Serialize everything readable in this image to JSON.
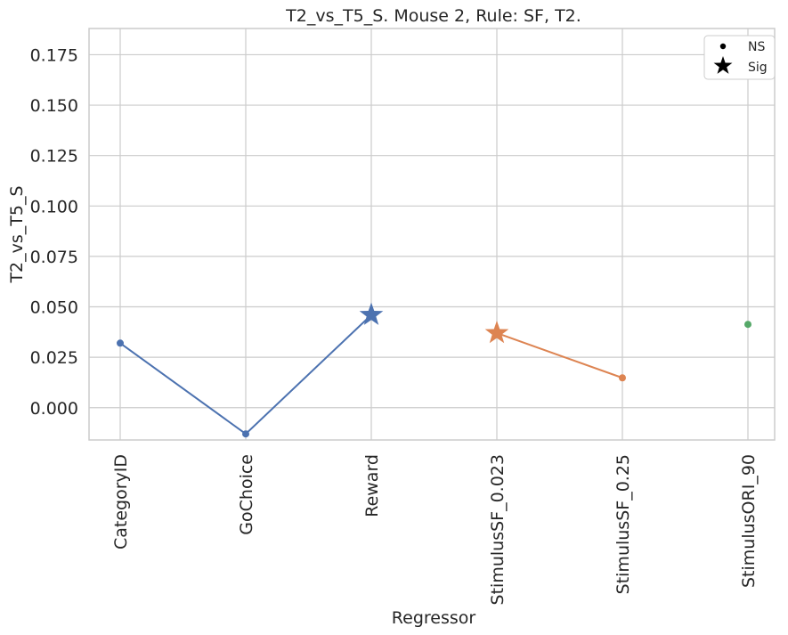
{
  "chart_data": {
    "type": "line",
    "title": "T2_vs_T5_S. Mouse 2, Rule: SF, T2.",
    "xlabel": "Regressor",
    "ylabel": "T2_vs_T5_S",
    "categories": [
      "CategoryID",
      "GoChoice",
      "Reward",
      "StimulusSF_0.023",
      "StimulusSF_0.25",
      "StimulusORI_90"
    ],
    "ylim": [
      -0.016,
      0.188
    ],
    "yticks": [
      0.0,
      0.025,
      0.05,
      0.075,
      0.1,
      0.125,
      0.15,
      0.175
    ],
    "ytick_labels": [
      "0.000",
      "0.025",
      "0.050",
      "0.075",
      "0.100",
      "0.125",
      "0.150",
      "0.175"
    ],
    "grid": true,
    "legend_position": "top-right",
    "legend": [
      {
        "label": "NS",
        "marker": "dot"
      },
      {
        "label": "Sig",
        "marker": "star"
      }
    ],
    "series": [
      {
        "color": "#4c72b0",
        "points": [
          {
            "category": "CategoryID",
            "value": 0.032,
            "sig": false
          },
          {
            "category": "GoChoice",
            "value": -0.013,
            "sig": false
          },
          {
            "category": "Reward",
            "value": 0.046,
            "sig": true
          }
        ]
      },
      {
        "color": "#dd8452",
        "points": [
          {
            "category": "StimulusSF_0.023",
            "value": 0.037,
            "sig": true
          },
          {
            "category": "StimulusSF_0.25",
            "value": 0.0148,
            "sig": false
          }
        ]
      },
      {
        "color": "#55a868",
        "points": [
          {
            "category": "StimulusORI_90",
            "value": 0.0413,
            "sig": false
          }
        ]
      }
    ]
  }
}
